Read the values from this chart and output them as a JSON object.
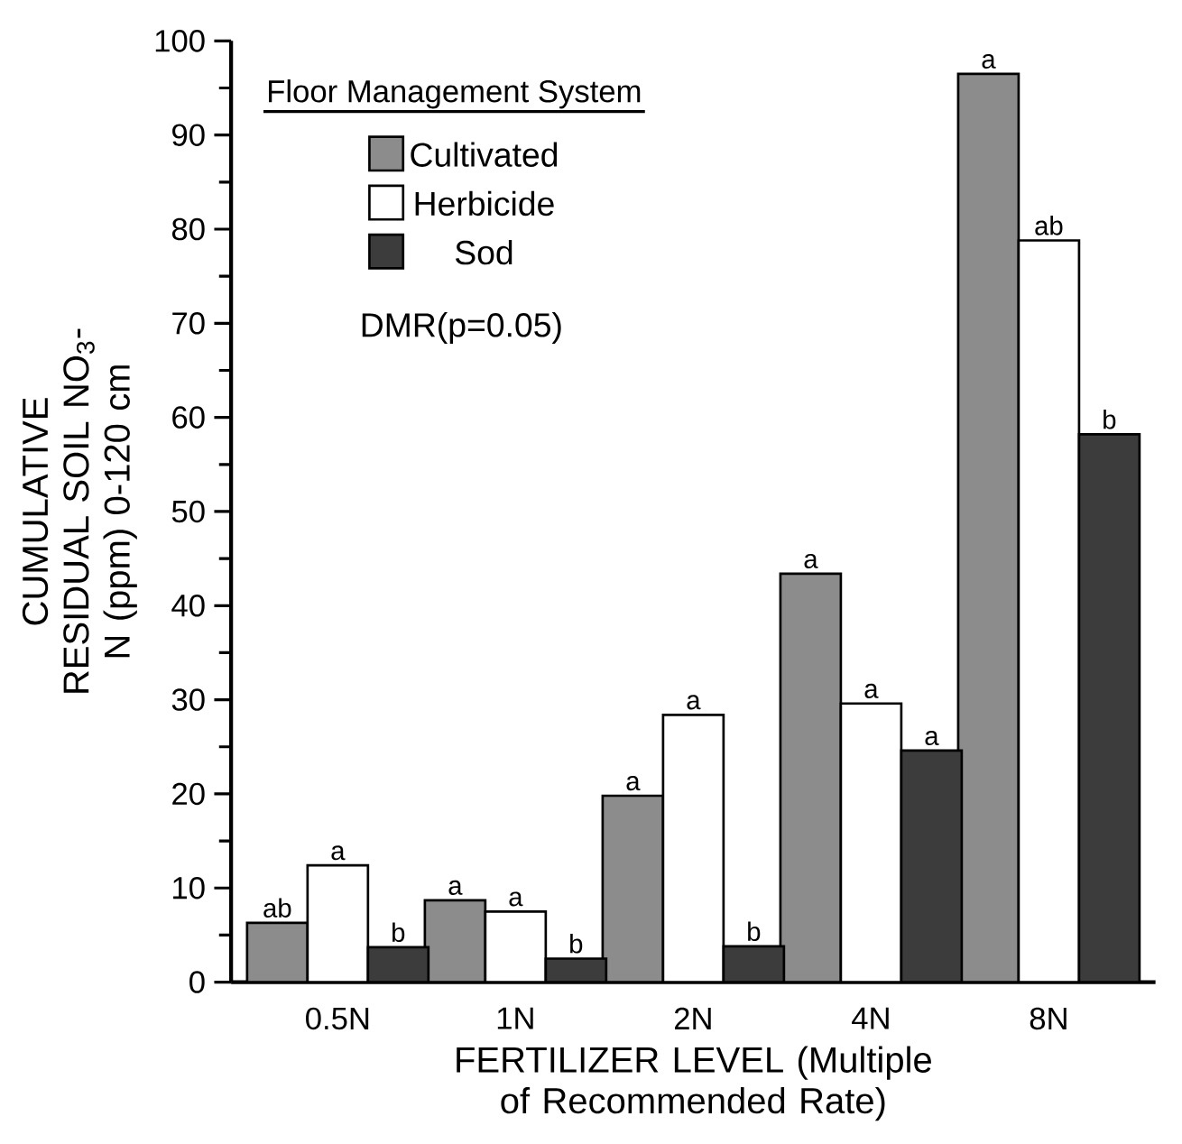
{
  "chart_data": {
    "type": "bar",
    "xlabel": "FERTILIZER LEVEL (Multiple of Recommended Rate)",
    "ylabel": "CUMULATIVE RESIDUAL SOIL NO$_{3}$-N (ppm) 0-120 cm",
    "legend_title": "Floor Management System",
    "annotations": [
      "DMR(p=0.05)"
    ],
    "categories": [
      "0.5N",
      "1N",
      "2N",
      "4N",
      "8N"
    ],
    "series": [
      {
        "name": "Cultivated",
        "color": "#8c8c8c",
        "values": [
          6.3,
          8.7,
          19.8,
          43.4,
          96.5
        ],
        "value_labels": [
          "ab",
          "a",
          "a",
          "a",
          "a"
        ]
      },
      {
        "name": "Herbicide",
        "color": "#ffffff",
        "values": [
          12.4,
          7.5,
          28.4,
          29.6,
          78.8
        ],
        "value_labels": [
          "a",
          "a",
          "a",
          "a",
          "ab"
        ]
      },
      {
        "name": "Sod",
        "color": "#3c3c3c",
        "values": [
          3.7,
          2.5,
          3.8,
          24.6,
          58.2
        ],
        "value_labels": [
          "b",
          "b",
          "b",
          "a",
          "b"
        ]
      }
    ],
    "ylim": [
      0,
      100
    ],
    "yticks": [
      0,
      10,
      20,
      30,
      40,
      50,
      60,
      70,
      80,
      90,
      100
    ],
    "grid": false,
    "legend": "top left"
  }
}
